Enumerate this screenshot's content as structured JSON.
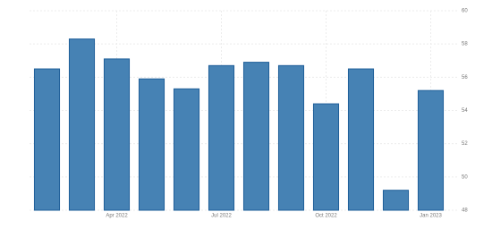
{
  "chart_data": {
    "type": "bar",
    "categories": [
      null,
      null,
      "Apr 2022",
      null,
      null,
      "Jul 2022",
      null,
      null,
      "Oct 2022",
      null,
      null,
      "Jan 2023"
    ],
    "values": [
      56.5,
      58.3,
      57.1,
      55.9,
      55.3,
      56.7,
      56.9,
      56.7,
      54.4,
      56.5,
      49.2,
      55.2
    ],
    "color": "#4682b4",
    "ylim": [
      48,
      60
    ],
    "yticks": [
      48,
      50,
      52,
      54,
      56,
      58,
      60
    ],
    "grid": true
  }
}
